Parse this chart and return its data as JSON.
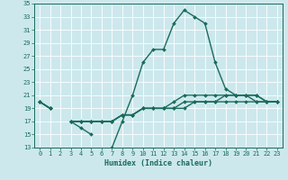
{
  "xlabel": "Humidex (Indice chaleur)",
  "bg_color": "#cce8ed",
  "line_color": "#1a6b5a",
  "grid_color": "#ffffff",
  "x_values": [
    0,
    1,
    2,
    3,
    4,
    5,
    6,
    7,
    8,
    9,
    10,
    11,
    12,
    13,
    14,
    15,
    16,
    17,
    18,
    19,
    20,
    21,
    22,
    23
  ],
  "series_main": [
    20,
    19,
    null,
    17,
    16,
    15,
    null,
    13,
    17,
    21,
    26,
    28,
    28,
    32,
    34,
    33,
    32,
    26,
    22,
    21,
    21,
    20,
    20,
    20
  ],
  "series_low1": [
    20,
    19,
    null,
    17,
    17,
    17,
    17,
    17,
    18,
    18,
    19,
    19,
    19,
    19,
    19,
    20,
    20,
    20,
    20,
    20,
    20,
    20,
    20,
    20
  ],
  "series_low2": [
    20,
    19,
    null,
    17,
    17,
    17,
    17,
    17,
    18,
    18,
    19,
    19,
    19,
    19,
    20,
    20,
    20,
    20,
    21,
    21,
    21,
    21,
    20,
    20
  ],
  "series_low3": [
    20,
    19,
    null,
    17,
    17,
    17,
    17,
    17,
    18,
    18,
    19,
    19,
    19,
    20,
    21,
    21,
    21,
    21,
    21,
    21,
    21,
    21,
    20,
    20
  ],
  "ylim": [
    13,
    35
  ],
  "xlim": [
    -0.5,
    23.5
  ],
  "yticks": [
    13,
    15,
    17,
    19,
    21,
    23,
    25,
    27,
    29,
    31,
    33,
    35
  ],
  "xticks": [
    0,
    1,
    2,
    3,
    4,
    5,
    6,
    7,
    8,
    9,
    10,
    11,
    12,
    13,
    14,
    15,
    16,
    17,
    18,
    19,
    20,
    21,
    22,
    23
  ],
  "marker": "D",
  "markersize": 2.0,
  "linewidth": 1.0,
  "tick_fontsize": 5.0,
  "xlabel_fontsize": 6.0
}
